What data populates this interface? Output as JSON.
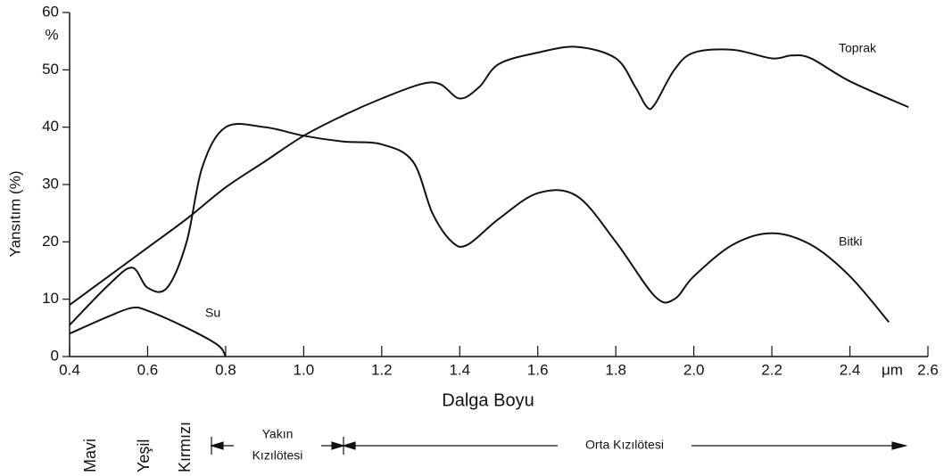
{
  "chart_data": {
    "type": "line",
    "y_label": "Yansıtım (%)",
    "x_label": "Dalga Boyu",
    "x_unit": "μm",
    "y_unit": "%",
    "xlim": [
      0.4,
      2.6
    ],
    "xticks": [
      0.4,
      0.6,
      0.8,
      {
        "value": 1,
        "label": "1.0"
      },
      1.2,
      1.4,
      1.6,
      1.8,
      {
        "value": 2,
        "label": "2.0"
      },
      2.2,
      2.4,
      2.6
    ],
    "ylim": [
      0,
      60
    ],
    "yticks": [
      0,
      10,
      20,
      30,
      40,
      50,
      60
    ],
    "series": [
      {
        "name": "Toprak",
        "color": "#111111",
        "x": [
          0.4,
          0.5,
          0.6,
          0.7,
          0.8,
          0.9,
          1.0,
          1.1,
          1.2,
          1.3,
          1.35,
          1.4,
          1.45,
          1.5,
          1.6,
          1.7,
          1.8,
          1.85,
          1.88,
          1.9,
          1.95,
          2.0,
          2.1,
          2.2,
          2.25,
          2.3,
          2.4,
          2.55
        ],
        "values": [
          9,
          14,
          19,
          24,
          29.5,
          34,
          38.5,
          42,
          45,
          47.5,
          47.5,
          45,
          47,
          51,
          53,
          54,
          52,
          47,
          43.5,
          44,
          50,
          53,
          53.5,
          52,
          52.5,
          52,
          48,
          43.5
        ]
      },
      {
        "name": "Bitki",
        "color": "#111111",
        "x": [
          0.4,
          0.5,
          0.56,
          0.6,
          0.65,
          0.7,
          0.74,
          0.8,
          0.9,
          1.0,
          1.1,
          1.2,
          1.28,
          1.33,
          1.38,
          1.42,
          1.5,
          1.6,
          1.7,
          1.8,
          1.9,
          1.95,
          2.0,
          2.1,
          2.2,
          2.3,
          2.4,
          2.5
        ],
        "values": [
          5.5,
          12.5,
          15.5,
          12,
          12,
          20,
          33,
          40,
          40,
          38.5,
          37.5,
          37,
          34,
          25,
          20,
          19.5,
          24,
          28.5,
          28,
          20,
          10.5,
          10,
          14,
          19.5,
          21.5,
          19.5,
          14,
          6
        ]
      },
      {
        "name": "Su",
        "color": "#111111",
        "x": [
          0.4,
          0.5,
          0.56,
          0.6,
          0.7,
          0.78,
          0.8
        ],
        "values": [
          4,
          7,
          8.5,
          8,
          5,
          2,
          0
        ]
      }
    ],
    "bands": [
      "Mavi",
      "Yeşil",
      "Kırmızı"
    ],
    "regions": [
      [
        "Yakın",
        "Kızılötesi"
      ],
      [
        "Orta Kızılötesi"
      ]
    ]
  }
}
